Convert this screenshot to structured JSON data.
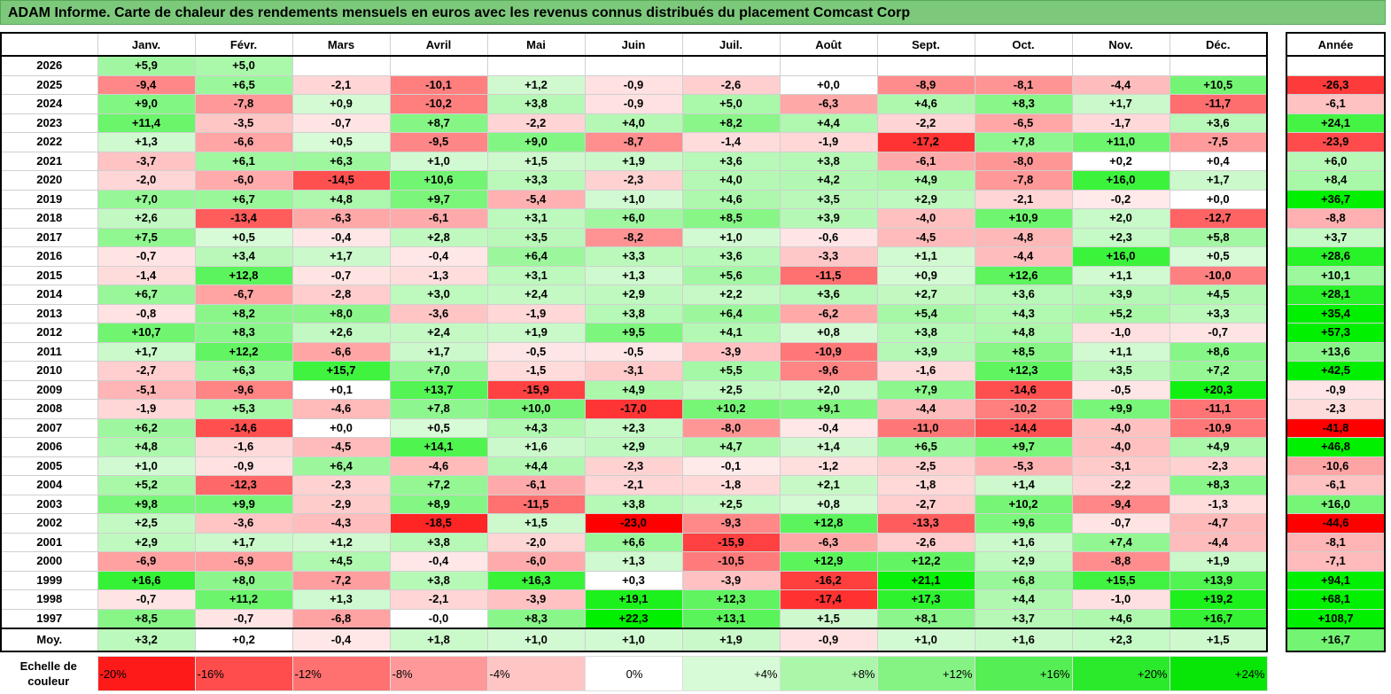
{
  "title": "ADAM Informe. Carte de chaleur des rendements mensuels en euros avec les revenus connus distribués du placement Comcast Corp",
  "chart_data": {
    "type": "heatmap",
    "months": [
      "Janv.",
      "Févr.",
      "Mars",
      "Avril",
      "Mai",
      "Juin",
      "Juil.",
      "Août",
      "Sept.",
      "Oct.",
      "Nov.",
      "Déc."
    ],
    "annual_header": "Année",
    "rows": [
      {
        "year": "2026",
        "values": [
          "+5,9",
          "+5,0",
          "",
          "",
          "",
          "",
          "",
          "",
          "",
          "",
          "",
          ""
        ],
        "annual": ""
      },
      {
        "year": "2025",
        "values": [
          "-9,4",
          "+6,5",
          "-2,1",
          "-10,1",
          "+1,2",
          "-0,9",
          "-2,6",
          "+0,0",
          "-8,9",
          "-8,1",
          "-4,4",
          "+10,5"
        ],
        "annual": "-26,3"
      },
      {
        "year": "2024",
        "values": [
          "+9,0",
          "-7,8",
          "+0,9",
          "-10,2",
          "+3,8",
          "-0,9",
          "+5,0",
          "-6,3",
          "+4,6",
          "+8,3",
          "+1,7",
          "-11,7"
        ],
        "annual": "-6,1"
      },
      {
        "year": "2023",
        "values": [
          "+11,4",
          "-3,5",
          "-0,7",
          "+8,7",
          "-2,2",
          "+4,0",
          "+8,2",
          "+4,4",
          "-2,2",
          "-6,5",
          "-1,7",
          "+3,6"
        ],
        "annual": "+24,1"
      },
      {
        "year": "2022",
        "values": [
          "+1,3",
          "-6,6",
          "+0,5",
          "-9,5",
          "+9,0",
          "-8,7",
          "-1,4",
          "-1,9",
          "-17,2",
          "+7,8",
          "+11,0",
          "-7,5"
        ],
        "annual": "-23,9"
      },
      {
        "year": "2021",
        "values": [
          "-3,7",
          "+6,1",
          "+6,3",
          "+1,0",
          "+1,5",
          "+1,9",
          "+3,6",
          "+3,8",
          "-6,1",
          "-8,0",
          "+0,2",
          "+0,4"
        ],
        "annual": "+6,0"
      },
      {
        "year": "2020",
        "values": [
          "-2,0",
          "-6,0",
          "-14,5",
          "+10,6",
          "+3,3",
          "-2,3",
          "+4,0",
          "+4,2",
          "+4,9",
          "-7,8",
          "+16,0",
          "+1,7"
        ],
        "annual": "+8,4"
      },
      {
        "year": "2019",
        "values": [
          "+7,0",
          "+6,7",
          "+4,8",
          "+9,7",
          "-5,4",
          "+1,0",
          "+4,6",
          "+3,5",
          "+2,9",
          "-2,1",
          "-0,2",
          "+0,0"
        ],
        "annual": "+36,7"
      },
      {
        "year": "2018",
        "values": [
          "+2,6",
          "-13,4",
          "-6,3",
          "-6,1",
          "+3,1",
          "+6,0",
          "+8,5",
          "+3,9",
          "-4,0",
          "+10,9",
          "+2,0",
          "-12,7"
        ],
        "annual": "-8,8"
      },
      {
        "year": "2017",
        "values": [
          "+7,5",
          "+0,5",
          "-0,4",
          "+2,8",
          "+3,5",
          "-8,2",
          "+1,0",
          "-0,6",
          "-4,5",
          "-4,8",
          "+2,3",
          "+5,8"
        ],
        "annual": "+3,7"
      },
      {
        "year": "2016",
        "values": [
          "-0,7",
          "+3,4",
          "+1,7",
          "-0,4",
          "+6,4",
          "+3,3",
          "+3,6",
          "-3,3",
          "+1,1",
          "-4,4",
          "+16,0",
          "+0,5"
        ],
        "annual": "+28,6"
      },
      {
        "year": "2015",
        "values": [
          "-1,4",
          "+12,8",
          "-0,7",
          "-1,3",
          "+3,1",
          "+1,3",
          "+5,6",
          "-11,5",
          "+0,9",
          "+12,6",
          "+1,1",
          "-10,0"
        ],
        "annual": "+10,1"
      },
      {
        "year": "2014",
        "values": [
          "+6,7",
          "-6,7",
          "-2,8",
          "+3,0",
          "+2,4",
          "+2,9",
          "+2,2",
          "+3,6",
          "+2,7",
          "+3,6",
          "+3,9",
          "+4,5"
        ],
        "annual": "+28,1"
      },
      {
        "year": "2013",
        "values": [
          "-0,8",
          "+8,2",
          "+8,0",
          "-3,6",
          "-1,9",
          "+3,8",
          "+6,4",
          "-6,2",
          "+5,4",
          "+4,3",
          "+5,2",
          "+3,3"
        ],
        "annual": "+35,4"
      },
      {
        "year": "2012",
        "values": [
          "+10,7",
          "+8,3",
          "+2,6",
          "+2,4",
          "+1,9",
          "+9,5",
          "+4,1",
          "+0,8",
          "+3,8",
          "+4,8",
          "-1,0",
          "-0,7"
        ],
        "annual": "+57,3"
      },
      {
        "year": "2011",
        "values": [
          "+1,7",
          "+12,2",
          "-6,6",
          "+1,7",
          "-0,5",
          "-0,5",
          "-3,9",
          "-10,9",
          "+3,9",
          "+8,5",
          "+1,1",
          "+8,6"
        ],
        "annual": "+13,6"
      },
      {
        "year": "2010",
        "values": [
          "-2,7",
          "+6,3",
          "+15,7",
          "+7,0",
          "-1,5",
          "-3,1",
          "+5,5",
          "-9,6",
          "-1,6",
          "+12,3",
          "+3,5",
          "+7,2"
        ],
        "annual": "+42,5"
      },
      {
        "year": "2009",
        "values": [
          "-5,1",
          "-9,6",
          "+0,1",
          "+13,7",
          "-15,9",
          "+4,9",
          "+2,5",
          "+2,0",
          "+7,9",
          "-14,6",
          "-0,5",
          "+20,3"
        ],
        "annual": "-0,9"
      },
      {
        "year": "2008",
        "values": [
          "-1,9",
          "+5,3",
          "-4,6",
          "+7,8",
          "+10,0",
          "-17,0",
          "+10,2",
          "+9,1",
          "-4,4",
          "-10,2",
          "+9,9",
          "-11,1"
        ],
        "annual": "-2,3"
      },
      {
        "year": "2007",
        "values": [
          "+6,2",
          "-14,6",
          "+0,0",
          "+0,5",
          "+4,3",
          "+2,3",
          "-8,0",
          "-0,4",
          "-11,0",
          "-14,4",
          "-4,0",
          "-10,9"
        ],
        "annual": "-41,8"
      },
      {
        "year": "2006",
        "values": [
          "+4,8",
          "-1,6",
          "-4,5",
          "+14,1",
          "+1,6",
          "+2,9",
          "+4,7",
          "+1,4",
          "+6,5",
          "+9,7",
          "-4,0",
          "+4,9"
        ],
        "annual": "+46,8"
      },
      {
        "year": "2005",
        "values": [
          "+1,0",
          "-0,9",
          "+6,4",
          "-4,6",
          "+4,4",
          "-2,3",
          "-0,1",
          "-1,2",
          "-2,5",
          "-5,3",
          "-3,1",
          "-2,3"
        ],
        "annual": "-10,6"
      },
      {
        "year": "2004",
        "values": [
          "+5,2",
          "-12,3",
          "-2,3",
          "+7,2",
          "-6,1",
          "-2,1",
          "-1,8",
          "+2,1",
          "-1,8",
          "+1,4",
          "-2,2",
          "+8,3"
        ],
        "annual": "-6,1"
      },
      {
        "year": "2003",
        "values": [
          "+9,8",
          "+9,9",
          "-2,9",
          "+8,9",
          "-11,5",
          "+3,8",
          "+2,5",
          "+0,8",
          "-2,7",
          "+10,2",
          "-9,4",
          "-1,3"
        ],
        "annual": "+16,0"
      },
      {
        "year": "2002",
        "values": [
          "+2,5",
          "-3,6",
          "-4,3",
          "-18,5",
          "+1,5",
          "-23,0",
          "-9,3",
          "+12,8",
          "-13,3",
          "+9,6",
          "-0,7",
          "-4,7"
        ],
        "annual": "-44,6"
      },
      {
        "year": "2001",
        "values": [
          "+2,9",
          "+1,7",
          "+1,2",
          "+3,8",
          "-2,0",
          "+6,6",
          "-15,9",
          "-6,3",
          "-2,6",
          "+1,6",
          "+7,4",
          "-4,4"
        ],
        "annual": "-8,1"
      },
      {
        "year": "2000",
        "values": [
          "-6,9",
          "-6,9",
          "+4,5",
          "-0,4",
          "-6,0",
          "+1,3",
          "-10,5",
          "+12,9",
          "+12,2",
          "+2,9",
          "-8,8",
          "+1,9"
        ],
        "annual": "-7,1"
      },
      {
        "year": "1999",
        "values": [
          "+16,6",
          "+8,0",
          "-7,2",
          "+3,8",
          "+16,3",
          "+0,3",
          "-3,9",
          "-16,2",
          "+21,1",
          "+6,8",
          "+15,5",
          "+13,9"
        ],
        "annual": "+94,1"
      },
      {
        "year": "1998",
        "values": [
          "-0,7",
          "+11,2",
          "+1,3",
          "-2,1",
          "-3,9",
          "+19,1",
          "+12,3",
          "-17,4",
          "+17,3",
          "+4,4",
          "-1,0",
          "+19,2"
        ],
        "annual": "+68,1"
      },
      {
        "year": "1997",
        "values": [
          "+8,5",
          "-0,7",
          "-6,8",
          "-0,0",
          "+8,3",
          "+22,3",
          "+13,1",
          "+1,5",
          "+8,1",
          "+3,7",
          "+4,6",
          "+16,7"
        ],
        "annual": "+108,7"
      }
    ],
    "average": {
      "label": "Moy.",
      "values": [
        "+3,2",
        "+0,2",
        "-0,4",
        "+1,8",
        "+1,0",
        "+1,0",
        "+1,9",
        "-0,9",
        "+1,0",
        "+1,6",
        "+2,3",
        "+1,5"
      ],
      "annual": "+16,7"
    }
  },
  "scale": {
    "label": "Echelle de couleur",
    "steps": [
      "-20%",
      "-16%",
      "-12%",
      "-8%",
      "-4%",
      "0%",
      "+4%",
      "+8%",
      "+12%",
      "+16%",
      "+20%",
      "+24%"
    ]
  }
}
